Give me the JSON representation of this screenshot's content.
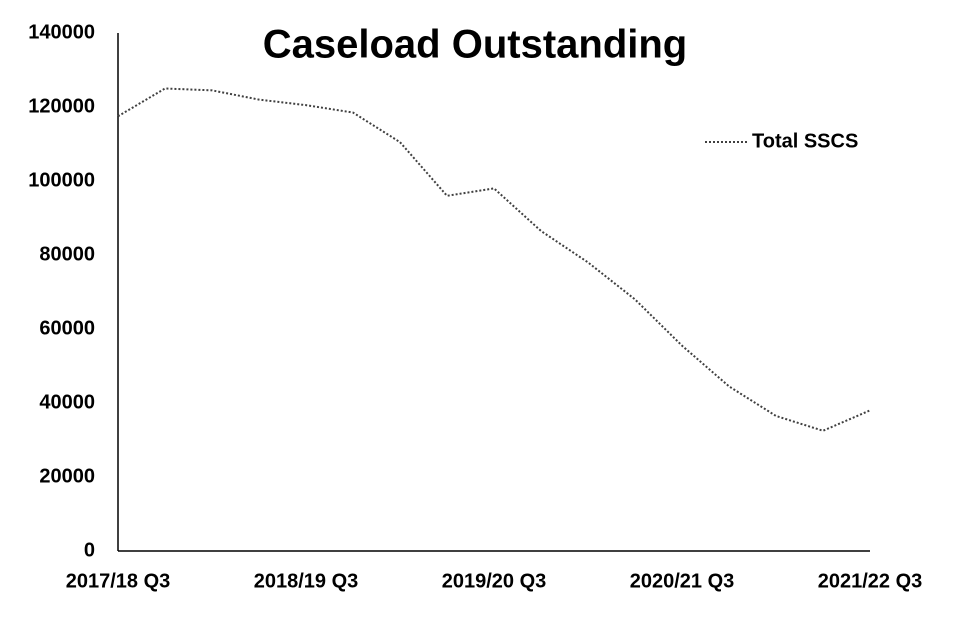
{
  "chart_data": {
    "type": "line",
    "title": "Caseload Outstanding",
    "categories": [
      "2017/18 Q3",
      null,
      null,
      null,
      "2018/19 Q3",
      null,
      null,
      null,
      "2019/20 Q3",
      null,
      null,
      null,
      "2020/21 Q3",
      null,
      null,
      null,
      "2021/22 Q3"
    ],
    "series": [
      {
        "name": "Total SSCS",
        "color": "#404040",
        "values": [
          117500,
          125000,
          124500,
          122000,
          120500,
          118500,
          110500,
          96000,
          98000,
          86500,
          78000,
          68000,
          55500,
          44500,
          36500,
          32500,
          38000
        ]
      }
    ],
    "ylim": [
      0,
      140000
    ],
    "yticks": [
      0,
      20000,
      40000,
      60000,
      80000,
      100000,
      120000,
      140000
    ],
    "grid": false,
    "legend": "upper-right"
  }
}
